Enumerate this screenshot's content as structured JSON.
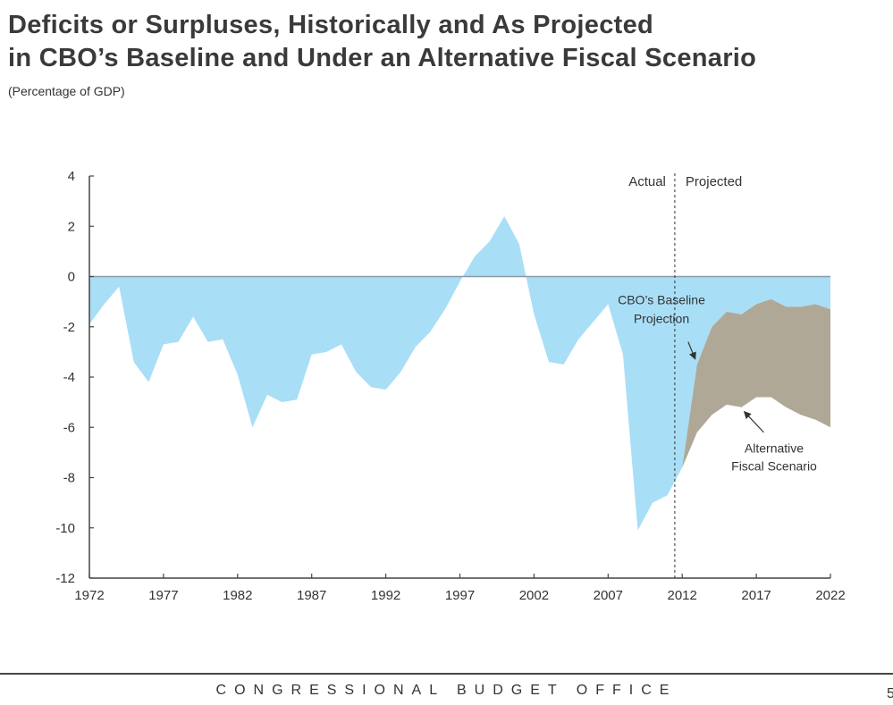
{
  "header": {
    "title_line1": "Deficits or Surpluses, Historically and As Projected",
    "title_line2": "in CBO’s Baseline and Under an Alternative Fiscal Scenario",
    "subtitle": "(Percentage of GDP)"
  },
  "footer": {
    "organization": "CONGRESSIONAL BUDGET OFFICE",
    "page_number": "5"
  },
  "colors": {
    "baseline_fill": "#a9def7",
    "alternative_fill": "#b0a897",
    "axis": "#444444",
    "zero_line": "#8a9aa5"
  },
  "chart_data": {
    "type": "area",
    "title": "Deficits or Surpluses, Historically and As Projected in CBO’s Baseline and Under an Alternative Fiscal Scenario",
    "ylabel": "Percentage of GDP",
    "xlabel": "",
    "xlim": [
      1972,
      2022
    ],
    "ylim": [
      -12,
      4
    ],
    "grid": false,
    "x_ticks": [
      1972,
      1977,
      1982,
      1987,
      1992,
      1997,
      2002,
      2007,
      2012,
      2017,
      2022
    ],
    "y_ticks": [
      4,
      2,
      0,
      -2,
      -4,
      -6,
      -8,
      -10,
      -12
    ],
    "divider_year": 2011.5,
    "divider_labels": {
      "left": "Actual",
      "right": "Projected"
    },
    "annotations": [
      {
        "text_lines": [
          "CBO’s Baseline",
          "Projection"
        ],
        "target": "baseline",
        "target_year": 2013,
        "target_value": -3.5
      },
      {
        "text_lines": [
          "Alternative",
          "Fiscal Scenario"
        ],
        "target": "alternative",
        "target_year": 2016,
        "target_value": -5.3
      }
    ],
    "series": [
      {
        "name": "CBO’s Baseline Projection",
        "x": [
          1972,
          1973,
          1974,
          1975,
          1976,
          1977,
          1978,
          1979,
          1980,
          1981,
          1982,
          1983,
          1984,
          1985,
          1986,
          1987,
          1988,
          1989,
          1990,
          1991,
          1992,
          1993,
          1994,
          1995,
          1996,
          1997,
          1998,
          1999,
          2000,
          2001,
          2002,
          2003,
          2004,
          2005,
          2006,
          2007,
          2008,
          2009,
          2010,
          2011,
          2012,
          2013,
          2014,
          2015,
          2016,
          2017,
          2018,
          2019,
          2020,
          2021,
          2022
        ],
        "values": [
          -1.9,
          -1.1,
          -0.4,
          -3.4,
          -4.2,
          -2.7,
          -2.6,
          -1.6,
          -2.6,
          -2.5,
          -3.9,
          -6.0,
          -4.7,
          -5.0,
          -4.9,
          -3.1,
          -3.0,
          -2.7,
          -3.8,
          -4.4,
          -4.5,
          -3.8,
          -2.8,
          -2.2,
          -1.3,
          -0.2,
          0.8,
          1.4,
          2.4,
          1.3,
          -1.5,
          -3.4,
          -3.5,
          -2.5,
          -1.8,
          -1.1,
          -3.1,
          -10.1,
          -9.0,
          -8.7,
          -7.6,
          -3.5,
          -2.0,
          -1.4,
          -1.5,
          -1.1,
          -0.9,
          -1.2,
          -1.2,
          -1.1,
          -1.3
        ]
      },
      {
        "name": "Alternative Fiscal Scenario",
        "x": [
          2012,
          2013,
          2014,
          2015,
          2016,
          2017,
          2018,
          2019,
          2020,
          2021,
          2022
        ],
        "values": [
          -7.6,
          -6.2,
          -5.5,
          -5.1,
          -5.2,
          -4.8,
          -4.8,
          -5.2,
          -5.5,
          -5.7,
          -6.0
        ]
      }
    ]
  }
}
